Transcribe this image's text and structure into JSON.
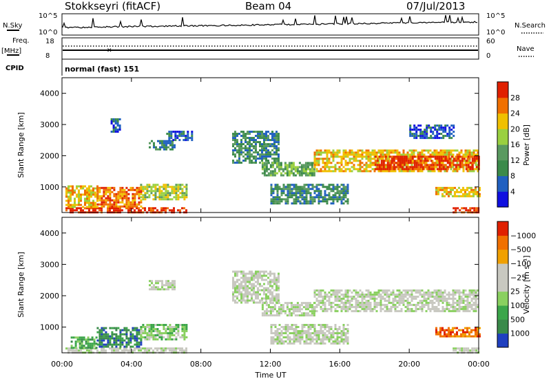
{
  "header": {
    "station": "Stokkseyri (fitACF)",
    "beam": "Beam 04",
    "date": "07/Jul/2013"
  },
  "top_panels": {
    "nsky_label": "N.Sky",
    "nsearch_label": "N.Search",
    "noise_ticks_left": [
      "10^5",
      "10^0"
    ],
    "noise_ticks_right": [
      "10^5",
      "10^0"
    ],
    "freq_label": "Freq.",
    "freq_unit": "[MHz]",
    "freq_ticks": [
      "18",
      "8"
    ],
    "nave_label": "Nave",
    "nave_ticks": [
      "60",
      "0"
    ],
    "cpid_label": "CPID",
    "cpid_text": "normal (fast) 151"
  },
  "chart_data": [
    {
      "type": "heatmap",
      "title": "",
      "xlabel": "",
      "ylabel": "Slant Range [km]",
      "xlim": [
        0,
        24
      ],
      "ylim": [
        180,
        4500
      ],
      "y_ticks": [
        1000,
        2000,
        3000,
        4000
      ],
      "colorbar": {
        "label": "Power [dB]",
        "ticks": [
          "4",
          "8",
          "12",
          "16",
          "20",
          "24",
          "28"
        ],
        "colors": [
          "#1010e0",
          "#2060c0",
          "#3b8a4a",
          "#5a9a60",
          "#9ad040",
          "#f0c000",
          "#f07000",
          "#e02000"
        ]
      },
      "echo_regions": [
        {
          "t0": 0.2,
          "t1": 7.2,
          "r0": 200,
          "r1": 350,
          "level": 7
        },
        {
          "t0": 0.2,
          "t1": 2.0,
          "r0": 350,
          "r1": 1050,
          "level": 5
        },
        {
          "t0": 2.0,
          "t1": 4.5,
          "r0": 400,
          "r1": 1000,
          "level": 6
        },
        {
          "t0": 4.5,
          "t1": 7.2,
          "r0": 600,
          "r1": 1100,
          "level": 4
        },
        {
          "t0": 2.8,
          "t1": 3.3,
          "r0": 2800,
          "r1": 3200,
          "level": 1
        },
        {
          "t0": 5.0,
          "t1": 6.5,
          "r0": 2200,
          "r1": 2500,
          "level": 2
        },
        {
          "t0": 6.0,
          "t1": 7.5,
          "r0": 2500,
          "r1": 2800,
          "level": 1
        },
        {
          "t0": 9.8,
          "t1": 12.5,
          "r0": 1800,
          "r1": 2800,
          "level": 2
        },
        {
          "t0": 11.5,
          "t1": 14.5,
          "r0": 1400,
          "r1": 1800,
          "level": 3
        },
        {
          "t0": 12.0,
          "t1": 16.5,
          "r0": 500,
          "r1": 1100,
          "level": 2
        },
        {
          "t0": 14.5,
          "t1": 24.0,
          "r0": 1500,
          "r1": 2200,
          "level": 5
        },
        {
          "t0": 18.0,
          "t1": 24.0,
          "r0": 1600,
          "r1": 2000,
          "level": 7
        },
        {
          "t0": 21.5,
          "t1": 24.0,
          "r0": 700,
          "r1": 1000,
          "level": 5
        },
        {
          "t0": 20.0,
          "t1": 22.5,
          "r0": 2600,
          "r1": 3000,
          "level": 1
        },
        {
          "t0": 22.5,
          "t1": 24.0,
          "r0": 200,
          "r1": 350,
          "level": 7
        }
      ]
    },
    {
      "type": "heatmap",
      "title": "",
      "xlabel": "Time UT",
      "ylabel": "Slant Range [km]",
      "xlim": [
        0,
        24
      ],
      "ylim": [
        180,
        4500
      ],
      "x_ticks": [
        "00:00",
        "04:00",
        "08:00",
        "12:00",
        "16:00",
        "20:00",
        "00:00"
      ],
      "y_ticks": [
        1000,
        2000,
        3000,
        4000
      ],
      "colorbar": {
        "label": "Velocity [m s⁻¹]",
        "ticks": [
          "1000",
          "500",
          "100",
          "25",
          "−25",
          "−100",
          "−500",
          "−1000"
        ],
        "colors": [
          "#2040c0",
          "#3a8a4a",
          "#3ca64a",
          "#8ad060",
          "#c8c8c0",
          "#c8c8c0",
          "#f0a000",
          "#f07000",
          "#e02000"
        ]
      },
      "echo_regions": [
        {
          "t0": 0.2,
          "t1": 7.2,
          "r0": 200,
          "r1": 350,
          "level": 4
        },
        {
          "t0": 0.5,
          "t1": 2.0,
          "r0": 350,
          "r1": 700,
          "level": 2
        },
        {
          "t0": 2.0,
          "t1": 4.5,
          "r0": 400,
          "r1": 1000,
          "level": 1
        },
        {
          "t0": 4.5,
          "t1": 7.2,
          "r0": 600,
          "r1": 1100,
          "level": 3
        },
        {
          "t0": 5.0,
          "t1": 6.5,
          "r0": 2200,
          "r1": 2500,
          "level": 4
        },
        {
          "t0": 9.8,
          "t1": 12.5,
          "r0": 1800,
          "r1": 2800,
          "level": 4
        },
        {
          "t0": 11.5,
          "t1": 14.5,
          "r0": 1400,
          "r1": 1800,
          "level": 4
        },
        {
          "t0": 12.0,
          "t1": 16.5,
          "r0": 500,
          "r1": 1100,
          "level": 4
        },
        {
          "t0": 14.5,
          "t1": 24.0,
          "r0": 1500,
          "r1": 2200,
          "level": 4
        },
        {
          "t0": 21.5,
          "t1": 24.0,
          "r0": 700,
          "r1": 1000,
          "level": 7
        },
        {
          "t0": 22.5,
          "t1": 24.0,
          "r0": 200,
          "r1": 350,
          "level": 4
        }
      ]
    }
  ]
}
